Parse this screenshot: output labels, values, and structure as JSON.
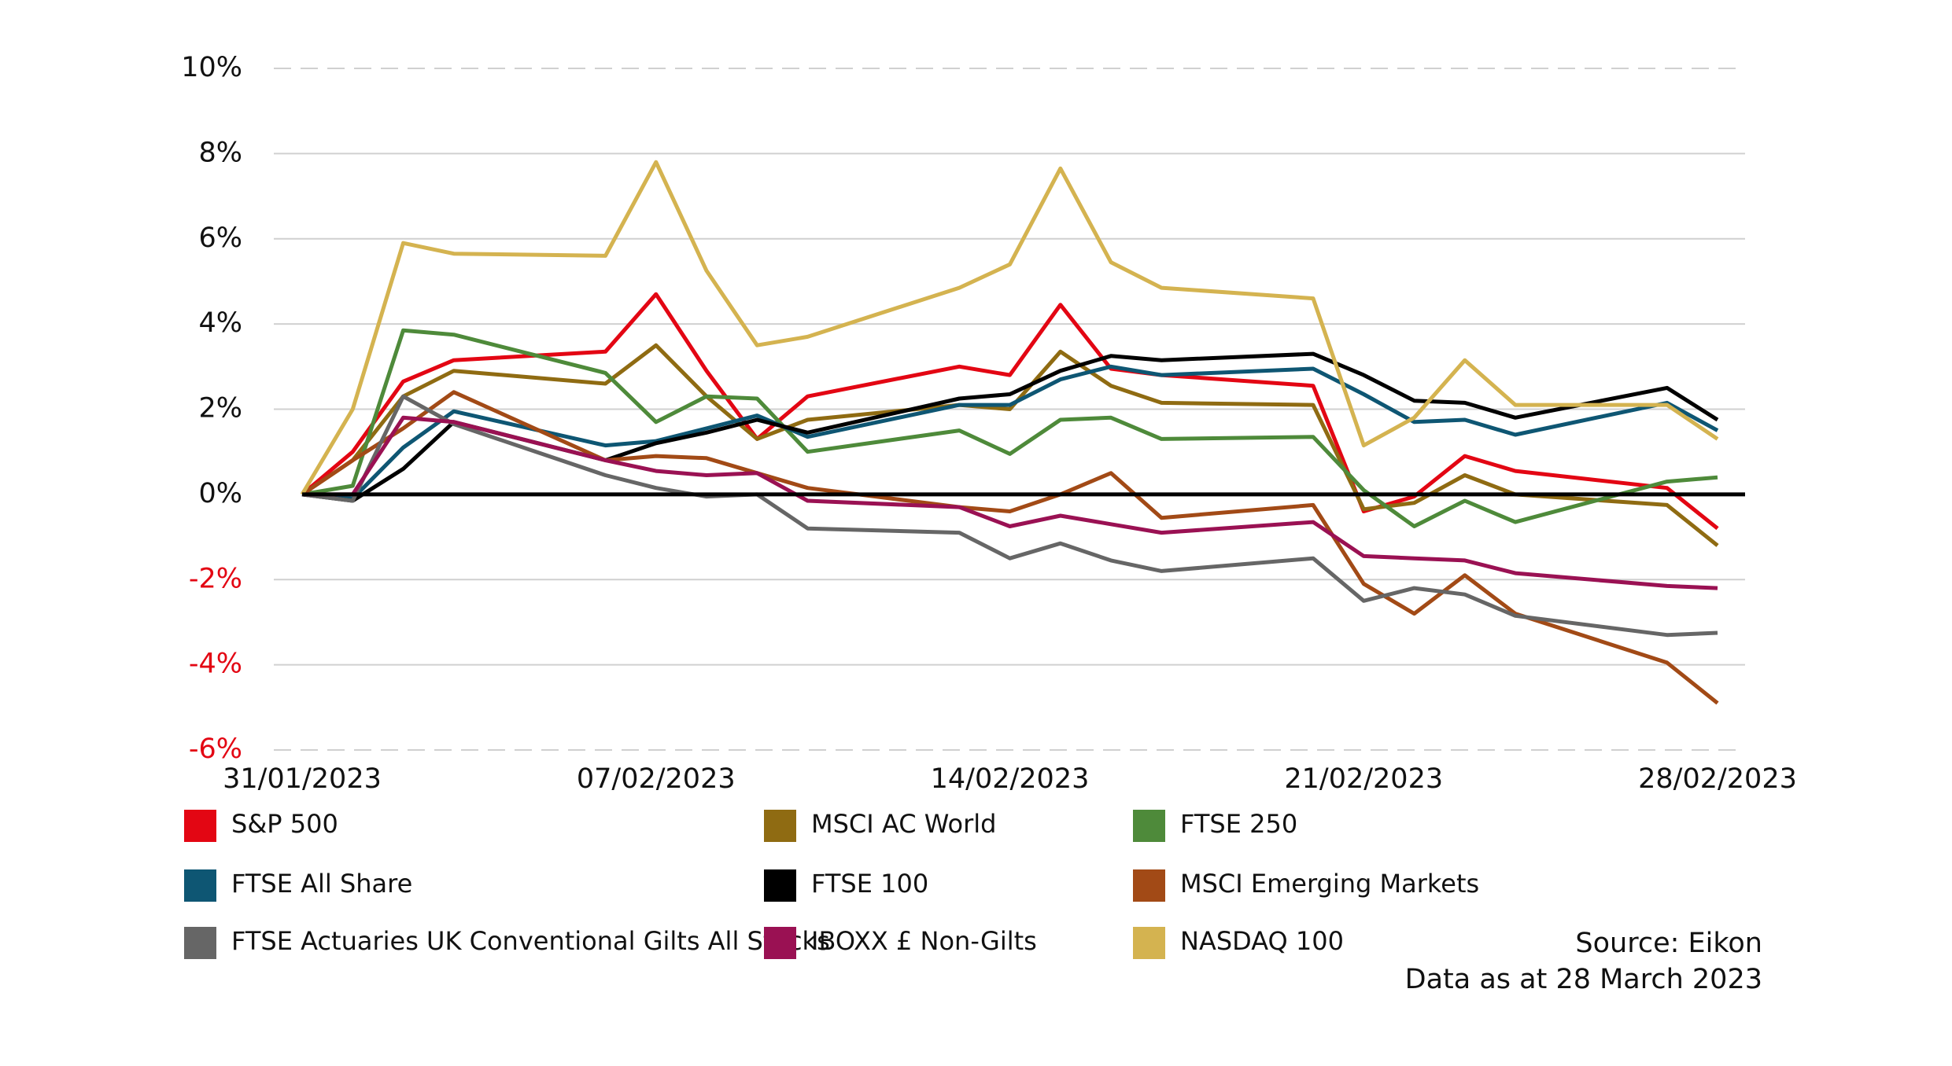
{
  "chart_data": {
    "type": "line",
    "x": [
      "2023-01-31",
      "2023-02-01",
      "2023-02-02",
      "2023-02-03",
      "2023-02-06",
      "2023-02-07",
      "2023-02-08",
      "2023-02-09",
      "2023-02-10",
      "2023-02-13",
      "2023-02-14",
      "2023-02-15",
      "2023-02-16",
      "2023-02-17",
      "2023-02-20",
      "2023-02-21",
      "2023-02-22",
      "2023-02-23",
      "2023-02-24",
      "2023-02-27",
      "2023-02-28"
    ],
    "xlim": [
      "2023-01-31",
      "2023-02-28"
    ],
    "xticks": [
      {
        "value": "2023-01-31",
        "label": "31/01/2023"
      },
      {
        "value": "2023-02-07",
        "label": "07/02/2023"
      },
      {
        "value": "2023-02-14",
        "label": "14/02/2023"
      },
      {
        "value": "2023-02-21",
        "label": "21/02/2023"
      },
      {
        "value": "2023-02-28",
        "label": "28/02/2023"
      }
    ],
    "ylim": [
      -6,
      10
    ],
    "yticks": [
      {
        "value": 10,
        "label": "10%"
      },
      {
        "value": 8,
        "label": "8%"
      },
      {
        "value": 6,
        "label": "6%"
      },
      {
        "value": 4,
        "label": "4%"
      },
      {
        "value": 2,
        "label": "2%"
      },
      {
        "value": 0,
        "label": "0%"
      },
      {
        "value": -2,
        "label": "-2%"
      },
      {
        "value": -4,
        "label": "-4%"
      },
      {
        "value": -6,
        "label": "-6%"
      }
    ],
    "grid": true,
    "negative_tick_color": "#e30613",
    "series": [
      {
        "name": "S&P 500",
        "color": "#e30613",
        "values": [
          0,
          1.0,
          2.65,
          3.15,
          3.35,
          4.7,
          2.9,
          1.3,
          2.3,
          3.0,
          2.8,
          4.45,
          2.95,
          2.8,
          2.55,
          -0.4,
          -0.05,
          0.9,
          0.55,
          0.15,
          -0.8
        ]
      },
      {
        "name": "MSCI AC World",
        "color": "#8f6b12",
        "values": [
          0,
          0.8,
          2.3,
          2.9,
          2.6,
          3.5,
          2.3,
          1.3,
          1.75,
          2.1,
          2.0,
          3.35,
          2.55,
          2.15,
          2.1,
          -0.35,
          -0.2,
          0.45,
          0.0,
          -0.25,
          -1.2
        ]
      },
      {
        "name": "FTSE 250",
        "color": "#4e8a3a",
        "values": [
          0,
          0.2,
          3.85,
          3.75,
          2.85,
          1.7,
          2.3,
          2.25,
          1.0,
          1.5,
          0.95,
          1.75,
          1.8,
          1.3,
          1.35,
          0.1,
          -0.75,
          -0.15,
          -0.65,
          0.3,
          0.4
        ]
      },
      {
        "name": "FTSE All Share",
        "color": "#0e5673",
        "values": [
          0,
          -0.1,
          1.1,
          1.95,
          1.15,
          1.25,
          1.55,
          1.85,
          1.35,
          2.1,
          2.1,
          2.7,
          3.0,
          2.8,
          2.95,
          2.35,
          1.7,
          1.75,
          1.4,
          2.15,
          1.5
        ]
      },
      {
        "name": "FTSE 100",
        "color": "#000000",
        "values": [
          0,
          -0.15,
          0.6,
          1.7,
          0.8,
          1.2,
          1.45,
          1.75,
          1.45,
          2.25,
          2.35,
          2.9,
          3.25,
          3.15,
          3.3,
          2.8,
          2.2,
          2.15,
          1.8,
          2.5,
          1.75
        ]
      },
      {
        "name": "MSCI Emerging Markets",
        "color": "#a24a16",
        "values": [
          0,
          0.8,
          1.55,
          2.4,
          0.8,
          0.9,
          0.85,
          0.5,
          0.15,
          -0.3,
          -0.4,
          0.0,
          0.5,
          -0.55,
          -0.25,
          -2.1,
          -2.8,
          -1.9,
          -2.8,
          -3.95,
          -4.9
        ]
      },
      {
        "name": "FTSE Actuaries UK Conventional Gilts All Stocks",
        "color": "#666666",
        "values": [
          0,
          -0.15,
          2.3,
          1.65,
          0.45,
          0.15,
          -0.05,
          0.0,
          -0.8,
          -0.9,
          -1.5,
          -1.15,
          -1.55,
          -1.8,
          -1.5,
          -2.5,
          -2.2,
          -2.35,
          -2.85,
          -3.3,
          -3.25
        ]
      },
      {
        "name": "IBOXX £ Non-Gilts",
        "color": "#9a1153",
        "values": [
          0,
          0.0,
          1.8,
          1.7,
          0.8,
          0.55,
          0.45,
          0.5,
          -0.15,
          -0.3,
          -0.75,
          -0.5,
          -0.7,
          -0.9,
          -0.65,
          -1.45,
          -1.5,
          -1.55,
          -1.85,
          -2.15,
          -2.2
        ]
      },
      {
        "name": "NASDAQ 100",
        "color": "#d4b350",
        "values": [
          0,
          2.0,
          5.9,
          5.65,
          5.6,
          7.8,
          5.25,
          3.5,
          3.7,
          4.85,
          5.4,
          7.65,
          5.45,
          4.85,
          4.6,
          1.15,
          1.8,
          3.15,
          2.1,
          2.1,
          1.3
        ]
      }
    ],
    "source": "Source: Eikon",
    "note": "Data as at 28 March 2023"
  }
}
